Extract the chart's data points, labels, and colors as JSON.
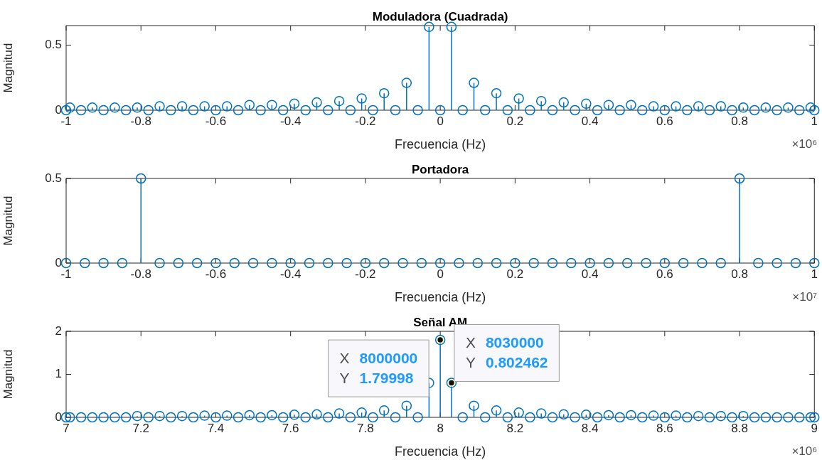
{
  "chart_data": [
    {
      "type": "lollipop",
      "title": "Moduladora (Cuadrada)",
      "xlabel": "Frecuencia (Hz)",
      "ylabel": "Magnitud",
      "color": "#0072bd",
      "marker": "circle",
      "x": [
        -1,
        -0.99,
        -0.96,
        -0.93,
        -0.9,
        -0.87,
        -0.84,
        -0.81,
        -0.78,
        -0.75,
        -0.72,
        -0.69,
        -0.66,
        -0.63,
        -0.6,
        -0.57,
        -0.54,
        -0.51,
        -0.48,
        -0.45,
        -0.42,
        -0.39,
        -0.36,
        -0.33,
        -0.3,
        -0.27,
        -0.24,
        -0.21,
        -0.18,
        -0.15,
        -0.12,
        -0.09,
        -0.06,
        -0.03,
        0,
        0.03,
        0.06,
        0.09,
        0.12,
        0.15,
        0.18,
        0.21,
        0.24,
        0.27,
        0.3,
        0.33,
        0.36,
        0.39,
        0.42,
        0.45,
        0.48,
        0.51,
        0.54,
        0.57,
        0.6,
        0.63,
        0.66,
        0.69,
        0.72,
        0.75,
        0.78,
        0.81,
        0.84,
        0.87,
        0.9,
        0.93,
        0.96,
        0.99,
        1
      ],
      "values": [
        0,
        0.02,
        0,
        0.02,
        0,
        0.02,
        0,
        0.02,
        0,
        0.03,
        0,
        0.03,
        0,
        0.03,
        0,
        0.03,
        0,
        0.04,
        0,
        0.04,
        0,
        0.05,
        0,
        0.06,
        0,
        0.07,
        0,
        0.09,
        0,
        0.13,
        0,
        0.21,
        0,
        0.64,
        0,
        0.64,
        0,
        0.21,
        0,
        0.13,
        0,
        0.09,
        0,
        0.07,
        0,
        0.06,
        0,
        0.05,
        0,
        0.04,
        0,
        0.04,
        0,
        0.03,
        0,
        0.03,
        0,
        0.03,
        0,
        0.03,
        0,
        0.02,
        0,
        0.02,
        0,
        0.02,
        0,
        0.02,
        0
      ],
      "xlim": [
        -1,
        1
      ],
      "xticks": [
        -1,
        -0.8,
        -0.6,
        -0.4,
        -0.2,
        0,
        0.2,
        0.4,
        0.6,
        0.8,
        1
      ],
      "ylim": [
        0,
        0.65
      ],
      "yticks": [
        0,
        0.5
      ],
      "annotations": [
        "×10⁶"
      ]
    },
    {
      "type": "lollipop",
      "title": "Portadora",
      "xlabel": "Frecuencia (Hz)",
      "ylabel": "Magnitud",
      "color": "#0072bd",
      "marker": "circle",
      "x": [
        -1,
        -0.95,
        -0.9,
        -0.85,
        -0.8,
        -0.75,
        -0.7,
        -0.65,
        -0.6,
        -0.55,
        -0.5,
        -0.45,
        -0.4,
        -0.35,
        -0.3,
        -0.25,
        -0.2,
        -0.15,
        -0.1,
        -0.05,
        0,
        0.05,
        0.1,
        0.15,
        0.2,
        0.25,
        0.3,
        0.35,
        0.4,
        0.45,
        0.5,
        0.55,
        0.6,
        0.65,
        0.7,
        0.75,
        0.8,
        0.85,
        0.9,
        0.95,
        1
      ],
      "values": [
        0,
        0,
        0,
        0,
        0.5,
        0,
        0,
        0,
        0,
        0,
        0,
        0,
        0,
        0,
        0,
        0,
        0,
        0,
        0,
        0,
        0,
        0,
        0,
        0,
        0,
        0,
        0,
        0,
        0,
        0,
        0,
        0,
        0,
        0,
        0,
        0,
        0.5,
        0,
        0,
        0,
        0
      ],
      "xlim": [
        -1,
        1
      ],
      "xticks": [
        -1,
        -0.8,
        -0.6,
        -0.4,
        -0.2,
        0,
        0.2,
        0.4,
        0.6,
        0.8,
        1
      ],
      "ylim": [
        0,
        0.5
      ],
      "yticks": [
        0,
        0.5
      ],
      "annotations": [
        "×10⁷"
      ]
    },
    {
      "type": "lollipop",
      "title": "Señal AM",
      "xlabel": "Frecuencia (Hz)",
      "ylabel": "Magnitud",
      "color": "#0072bd",
      "marker": "circle",
      "x": [
        7,
        7.01,
        7.04,
        7.07,
        7.1,
        7.13,
        7.16,
        7.19,
        7.22,
        7.25,
        7.28,
        7.31,
        7.34,
        7.37,
        7.4,
        7.43,
        7.46,
        7.49,
        7.52,
        7.55,
        7.58,
        7.61,
        7.64,
        7.67,
        7.7,
        7.73,
        7.76,
        7.79,
        7.82,
        7.85,
        7.88,
        7.91,
        7.94,
        7.97,
        8,
        8.03,
        8.06,
        8.09,
        8.12,
        8.15,
        8.18,
        8.21,
        8.24,
        8.27,
        8.3,
        8.33,
        8.36,
        8.39,
        8.42,
        8.45,
        8.48,
        8.51,
        8.54,
        8.57,
        8.6,
        8.63,
        8.66,
        8.69,
        8.72,
        8.75,
        8.78,
        8.81,
        8.84,
        8.87,
        8.9,
        8.93,
        8.96,
        8.99,
        9
      ],
      "values": [
        0,
        0,
        0,
        0,
        0,
        0,
        0,
        0.03,
        0,
        0.03,
        0,
        0.03,
        0,
        0.04,
        0,
        0.04,
        0,
        0.05,
        0,
        0.05,
        0,
        0.06,
        0,
        0.07,
        0,
        0.09,
        0,
        0.11,
        0,
        0.16,
        0,
        0.27,
        0,
        0.8,
        1.79998,
        0.802462,
        0,
        0.27,
        0,
        0.16,
        0,
        0.11,
        0,
        0.09,
        0,
        0.07,
        0,
        0.06,
        0,
        0.05,
        0,
        0.05,
        0,
        0.04,
        0,
        0.04,
        0,
        0.03,
        0,
        0.03,
        0,
        0.03,
        0,
        0,
        0,
        0,
        0,
        0,
        0
      ],
      "xlim": [
        7,
        9
      ],
      "xticks": [
        7,
        7.2,
        7.4,
        7.6,
        7.8,
        8,
        8.2,
        8.4,
        8.6,
        8.8,
        9
      ],
      "ylim": [
        0,
        2
      ],
      "yticks": [
        0,
        1,
        2
      ],
      "annotations": [
        {
          "text": "X 8000000\nY 1.79998",
          "x": 8,
          "y": 1.79998
        },
        {
          "text": "X 8030000\nY 0.802462",
          "x": 8.03,
          "y": 0.802462
        },
        "×10⁶"
      ]
    }
  ]
}
